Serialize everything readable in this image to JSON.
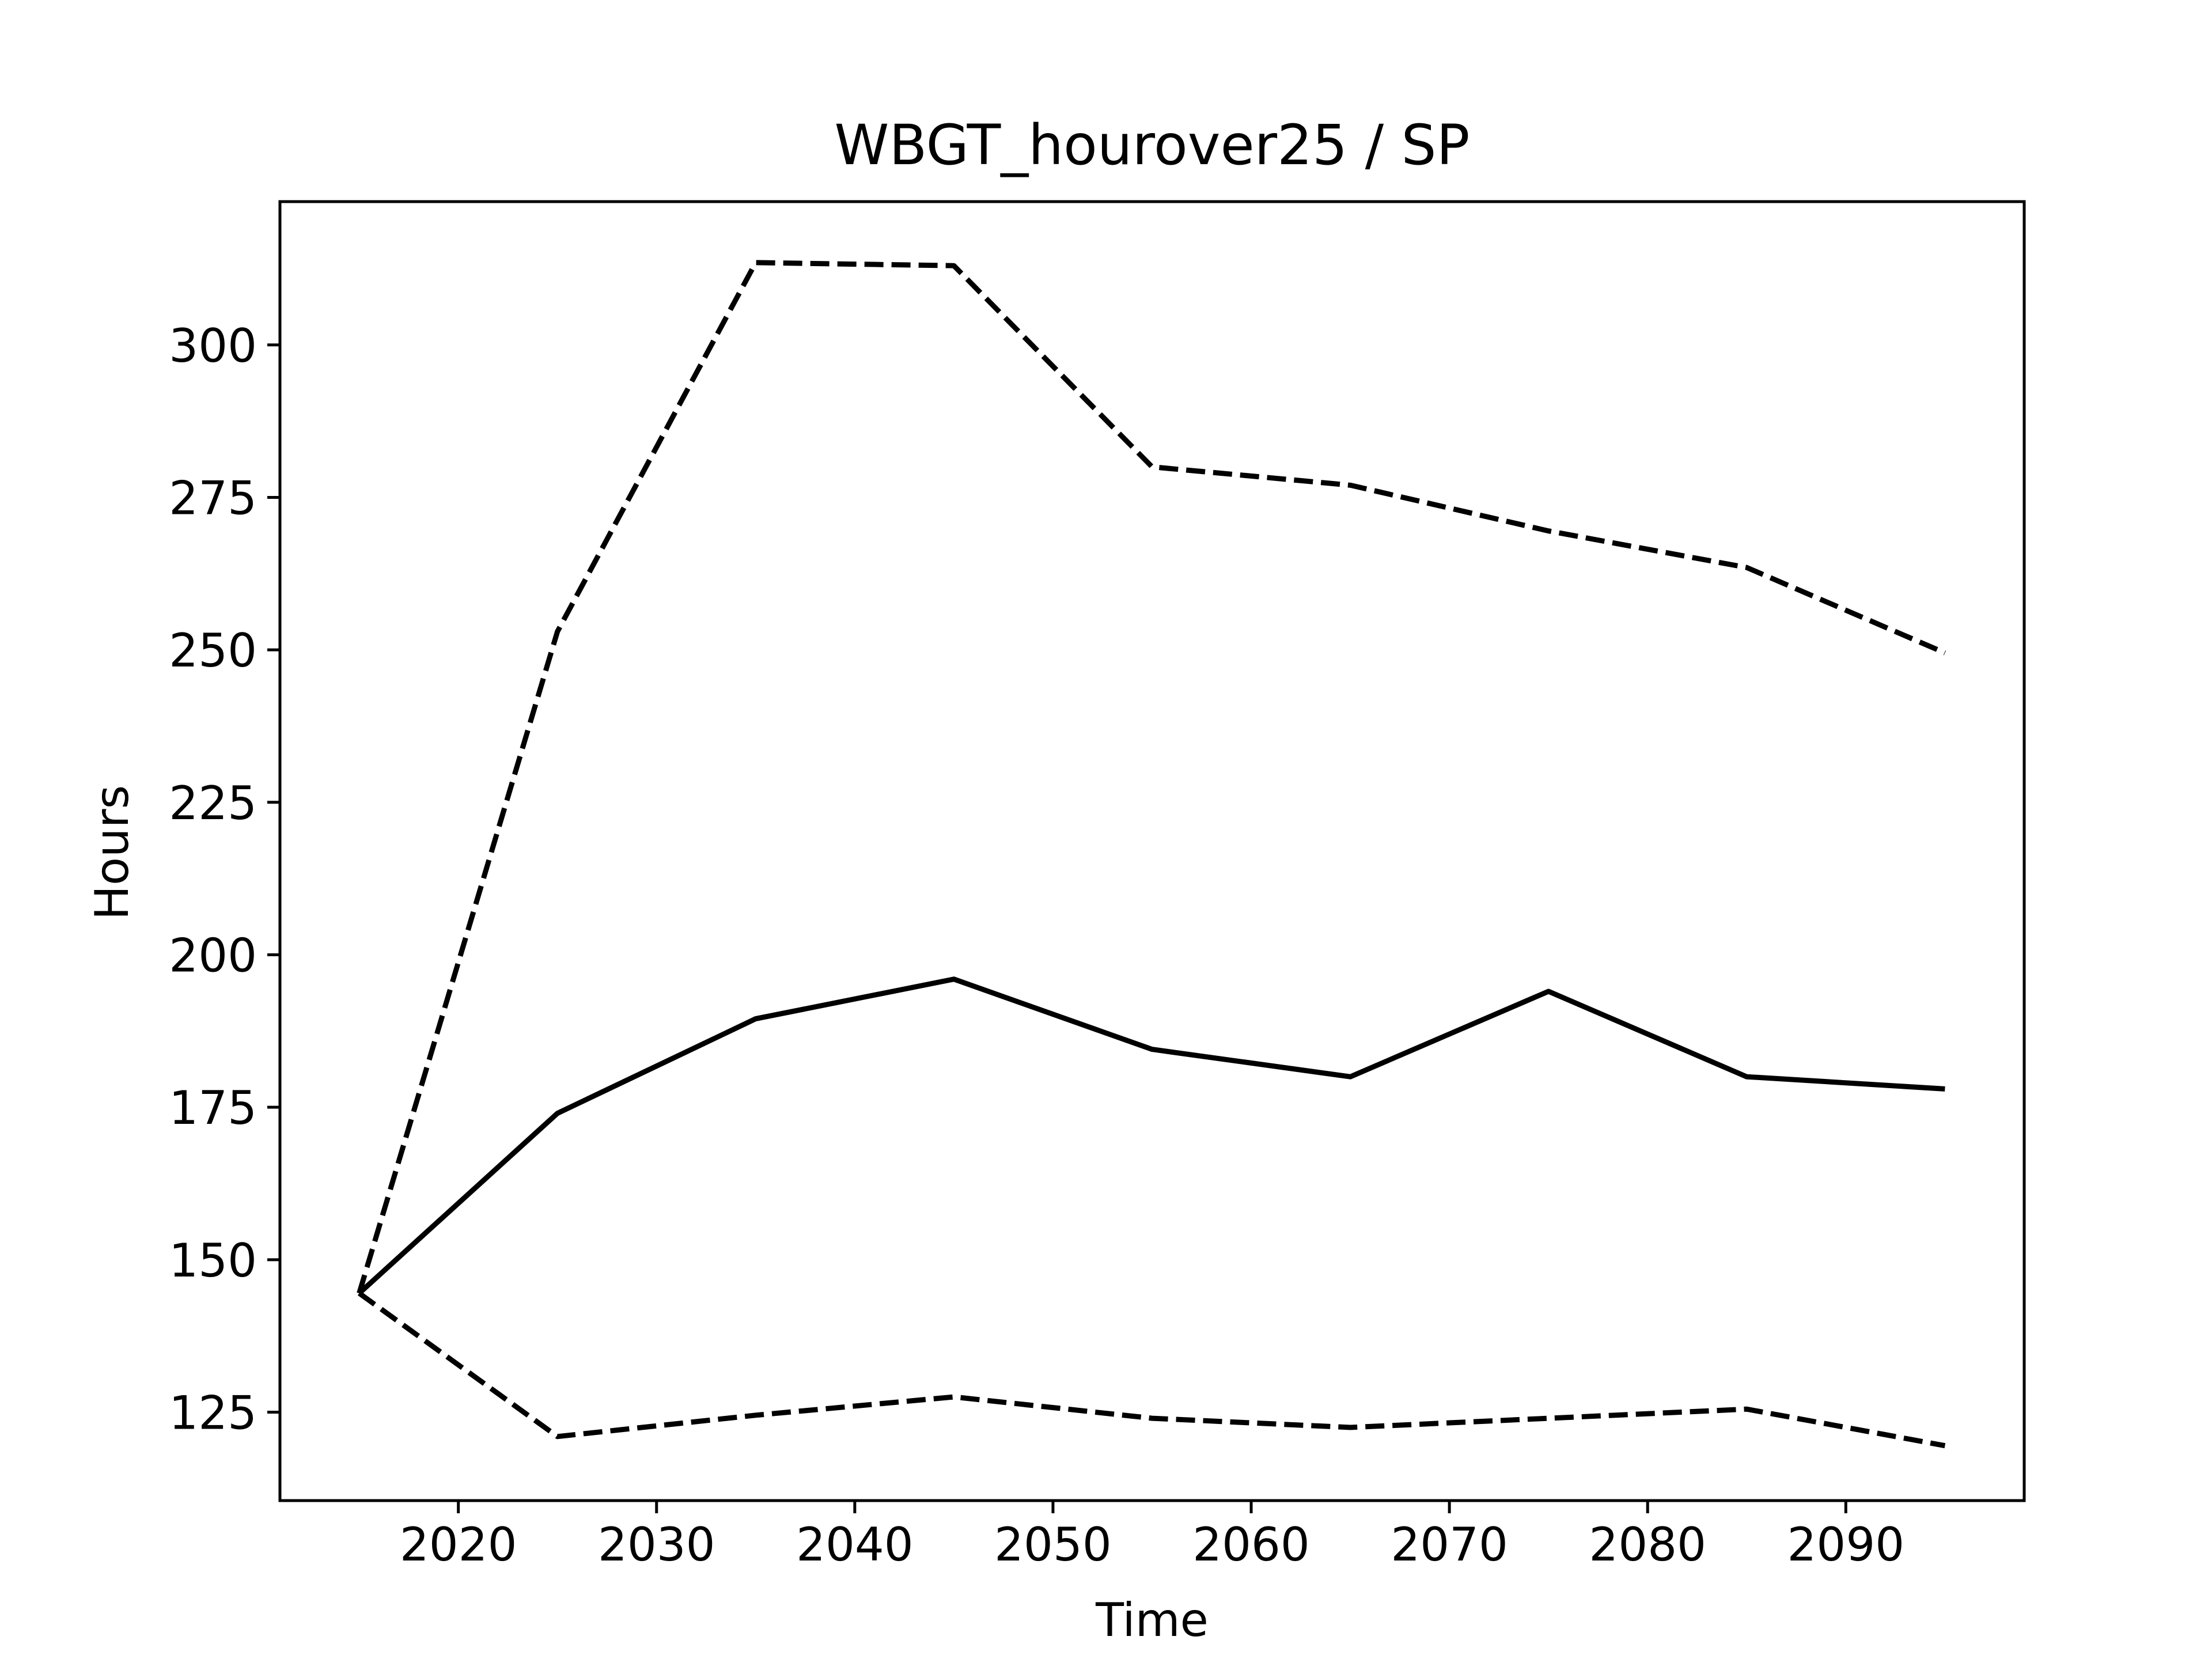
{
  "chart_data": {
    "type": "line",
    "title": "WBGT_hourover25 / SP",
    "xlabel": "Time",
    "ylabel": "Hours",
    "xlim": [
      2011,
      2099
    ],
    "ylim": [
      110.5,
      323.5
    ],
    "x_ticks": [
      2020,
      2030,
      2040,
      2050,
      2060,
      2070,
      2080,
      2090
    ],
    "y_ticks": [
      125,
      150,
      175,
      200,
      225,
      250,
      275,
      300
    ],
    "grid": false,
    "legend": "none",
    "x": [
      2015,
      2025,
      2035,
      2045,
      2055,
      2065,
      2075,
      2085,
      2095
    ],
    "series": [
      {
        "style": "dashed",
        "color": "#000000",
        "values": [
          144.5,
          253,
          313.5,
          313,
          280,
          277,
          269.5,
          263.5,
          249.5
        ]
      },
      {
        "style": "solid",
        "color": "#000000",
        "values": [
          144.5,
          174,
          189.5,
          196,
          184.5,
          180,
          194,
          180,
          178
        ]
      },
      {
        "style": "dashed",
        "color": "#000000",
        "values": [
          144.5,
          121,
          124.5,
          127.5,
          124,
          122.5,
          124,
          125.5,
          119.5
        ]
      }
    ]
  }
}
